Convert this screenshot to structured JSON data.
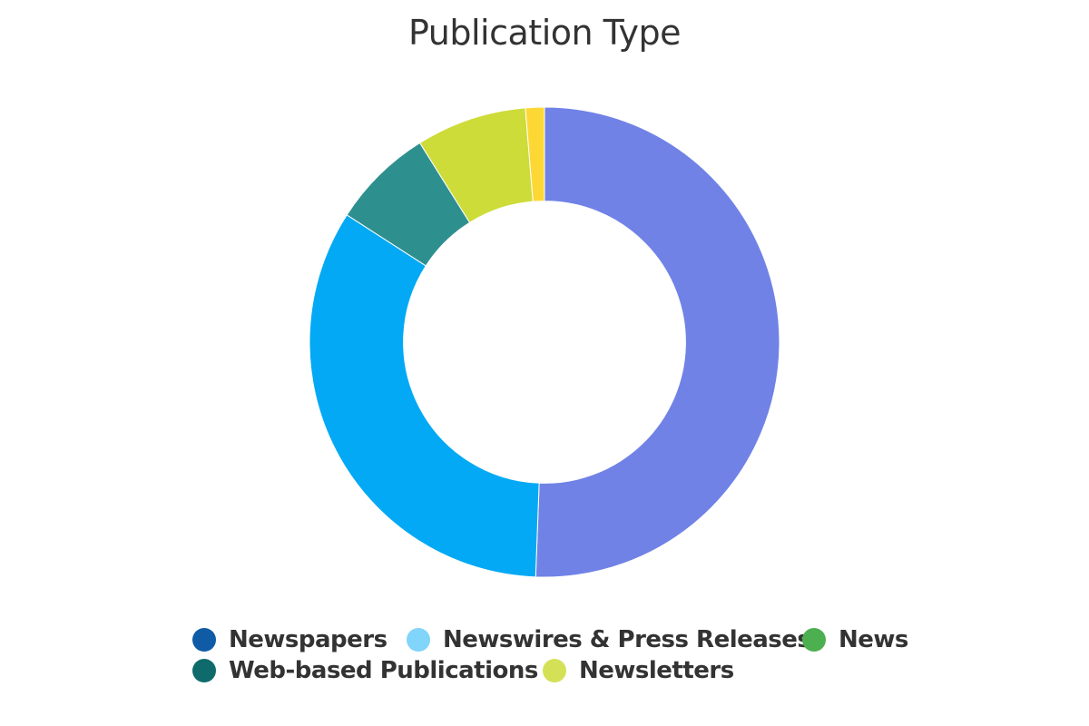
{
  "chart_data": {
    "type": "pie",
    "title": "Publication Type",
    "hole": 0.6,
    "slices": [
      {
        "label": "Newspapers",
        "value": 50.6,
        "color": "#7082e6",
        "legend_color": "#0f5ba6"
      },
      {
        "label": "Newswires & Press Releases",
        "value": 33.5,
        "color": "#03a9f4",
        "legend_color": "#81d4fa"
      },
      {
        "label": "News",
        "value": 0,
        "color": "#4caf50",
        "legend_color": "#4caf50"
      },
      {
        "label": "Web-based Publications",
        "value": 7.0,
        "color": "#2e8f8f",
        "legend_color": "#0f6b6b"
      },
      {
        "label": "Newsletters",
        "value": 7.6,
        "color": "#cddc39",
        "legend_color": "#d4e157"
      },
      {
        "label": "",
        "value": 1.3,
        "color": "#fdd835"
      }
    ],
    "legend": {
      "position": "bottom",
      "items": [
        "Newspapers",
        "Newswires & Press Releases",
        "News",
        "Web-based Publications",
        "Newsletters"
      ]
    }
  }
}
